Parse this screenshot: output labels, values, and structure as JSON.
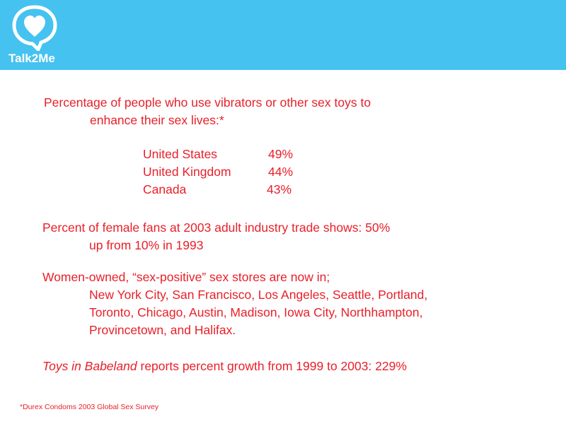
{
  "brand": {
    "name": "Talk2Me",
    "logo_icon": "speech-bubble-heart-icon",
    "header_color": "#45c2f0"
  },
  "text_color": "#e8202a",
  "toys_section": {
    "heading_line1": "Percentage of people who use vibrators or other sex toys to",
    "heading_line2": "enhance their sex lives:*",
    "rows": [
      {
        "country": "United States",
        "percent": "49%"
      },
      {
        "country": "United Kingdom",
        "percent": "44%"
      },
      {
        "country": "Canada",
        "percent": "43%"
      }
    ]
  },
  "female_fans": {
    "line1": "Percent of female fans at 2003 adult industry trade shows: 50%",
    "line2": "up from 10%  in 1993"
  },
  "stores": {
    "intro": "Women-owned, “sex-positive” sex stores are now in;",
    "line1": "New York City, San Francisco, Los Angeles, Seattle, Portland,",
    "line2": "Toronto, Chicago, Austin, Madison, Iowa City, Northhampton,",
    "line3": "Provincetown, and Halifax."
  },
  "babeland": {
    "name": "Toys in Babeland",
    "rest": " reports percent growth from 1999 to 2003: 229%"
  },
  "footnote": "*Durex Condoms 2003 Global Sex Survey"
}
